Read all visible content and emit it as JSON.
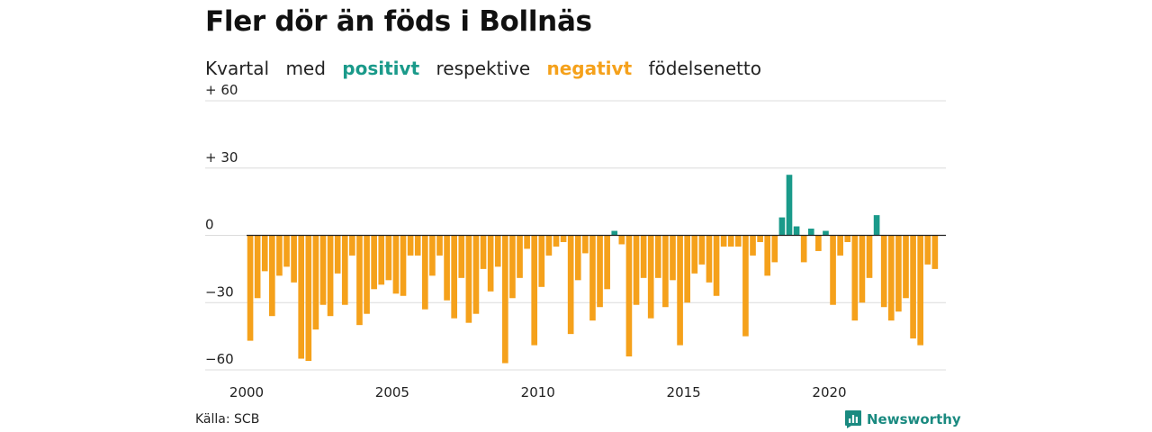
{
  "header": {
    "title": "Fler dör än föds i Bollnäs",
    "subtitle": {
      "part1": "Kvartal",
      "part2": "med",
      "positive_word": "positivt",
      "part3": "respektive",
      "negative_word": "negativt",
      "part4": "födelsenetto"
    }
  },
  "colors": {
    "positive": "#1a9a8a",
    "negative": "#f5a11b",
    "grid": "#dcdcdc",
    "axis": "#222222"
  },
  "footer": {
    "source": "Källa: SCB",
    "brand": "Newsworthy",
    "brand_icon": "newsworthy-logo-icon"
  },
  "chart_data": {
    "type": "bar",
    "title": "Fler dör än föds i Bollnäs",
    "subtitle": "Kvartal med positivt respektive negativt födelsenetto",
    "xlabel": "",
    "ylabel": "",
    "x_start": 2000,
    "x_end": 2024,
    "bars_per_year": 4,
    "x_ticks": [
      2000,
      2005,
      2010,
      2015,
      2020
    ],
    "x_tick_labels": [
      "2000",
      "2005",
      "2010",
      "2015",
      "2020"
    ],
    "y_ticks": [
      60,
      30,
      0,
      -30,
      -60
    ],
    "y_tick_labels": [
      "+ 60",
      "+ 30",
      "0",
      "−30",
      "−60"
    ],
    "ylim": [
      -60,
      60
    ],
    "grid": true,
    "values": [
      -47,
      -28,
      -16,
      -36,
      -18,
      -14,
      -21,
      -55,
      -56,
      -42,
      -31,
      -36,
      -17,
      -31,
      -9,
      -40,
      -35,
      -24,
      -22,
      -20,
      -26,
      -27,
      -9,
      -9,
      -33,
      -18,
      -9,
      -29,
      -37,
      -19,
      -39,
      -35,
      -15,
      -25,
      -14,
      -57,
      -28,
      -19,
      -6,
      -49,
      -23,
      -9,
      -5,
      -3,
      -44,
      -20,
      -8,
      -38,
      -32,
      -24,
      2,
      -4,
      -54,
      -31,
      -19,
      -37,
      -19,
      -32,
      -20,
      -49,
      -30,
      -17,
      -13,
      -21,
      -27,
      -5,
      -5,
      -5,
      -45,
      -9,
      -3,
      -18,
      -12,
      8,
      27,
      4,
      -12,
      3,
      -7,
      2,
      -31,
      -9,
      -3,
      -38,
      -30,
      -19,
      9,
      -32,
      -38,
      -34,
      -28,
      -46,
      -49,
      -13,
      -15
    ]
  }
}
